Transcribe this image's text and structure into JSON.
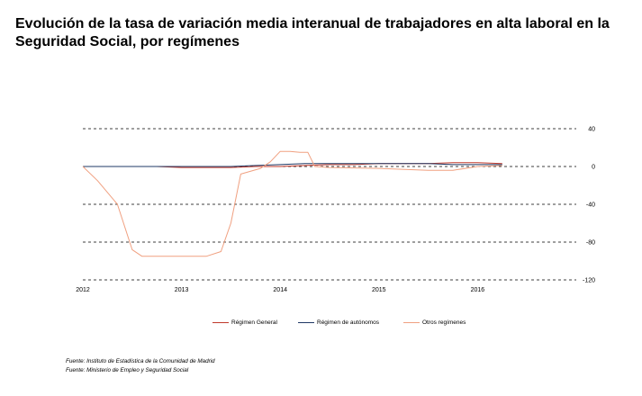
{
  "title": "Evolución de la tasa de variación media interanual de trabajadores en alta laboral en la Seguridad Social, por  regímenes",
  "sources": [
    "Fuente: Instituto de Estadística de la Comunidad de Madrid",
    "Fuente: Ministerio de Empleo y Seguridad Social"
  ],
  "chart_data": {
    "type": "line",
    "title": "Evolución de la tasa de variación media interanual de trabajadores en alta laboral en la Seguridad Social, por  regímenes",
    "xlabel": "",
    "ylabel": "",
    "x_ticks": [
      "2012",
      "2013",
      "2014",
      "2015",
      "2016"
    ],
    "xlim": [
      2012,
      2017
    ],
    "ylim": [
      -120,
      40
    ],
    "y_ticks": [
      40,
      0,
      -40,
      -80,
      -120
    ],
    "y_axis_side": "right",
    "grid": "horizontal dashed",
    "legend_position": "bottom",
    "series": [
      {
        "name": "Régimen General",
        "color": "#c0392b",
        "x": [
          2012.0,
          2012.25,
          2012.5,
          2012.75,
          2013.0,
          2013.25,
          2013.5,
          2013.75,
          2014.0,
          2014.25,
          2014.5,
          2014.75,
          2015.0,
          2015.25,
          2015.5,
          2015.75,
          2016.0,
          2016.25
        ],
        "values": [
          0,
          0,
          0,
          0,
          -1,
          -1,
          -1,
          0,
          0,
          1,
          2,
          2,
          3,
          3,
          3,
          4,
          4,
          3
        ]
      },
      {
        "name": "Régimen de autónomos",
        "color": "#1f3864",
        "x": [
          2012.0,
          2012.25,
          2012.5,
          2012.75,
          2013.0,
          2013.25,
          2013.5,
          2013.75,
          2014.0,
          2014.25,
          2014.5,
          2014.75,
          2015.0,
          2015.25,
          2015.5,
          2015.75,
          2016.0,
          2016.25
        ],
        "values": [
          0,
          0,
          0,
          0,
          0,
          0,
          0,
          1,
          2,
          3,
          3,
          3,
          3,
          3,
          3,
          2,
          2,
          2
        ]
      },
      {
        "name": "Otros regímenes",
        "color": "#f0a080",
        "x": [
          2012.0,
          2012.15,
          2012.35,
          2012.5,
          2012.6,
          2012.75,
          2013.0,
          2013.25,
          2013.4,
          2013.5,
          2013.6,
          2013.8,
          2013.9,
          2014.0,
          2014.1,
          2014.2,
          2014.28,
          2014.35,
          2014.5,
          2015.0,
          2015.5,
          2015.75,
          2016.0,
          2016.25
        ],
        "values": [
          0,
          -15,
          -40,
          -88,
          -95,
          -95,
          -95,
          -95,
          -90,
          -60,
          -8,
          -2,
          5,
          16,
          16,
          15,
          15,
          0,
          -1,
          -2,
          -4,
          -4,
          0,
          1
        ]
      }
    ]
  }
}
